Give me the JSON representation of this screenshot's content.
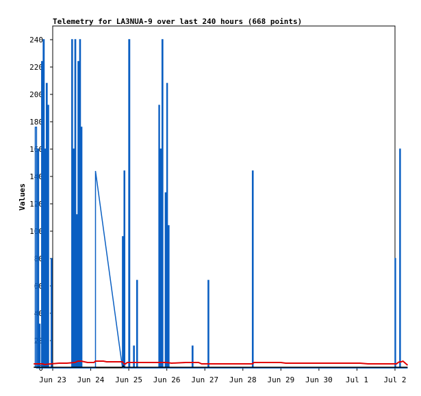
{
  "chart_data": {
    "type": "line",
    "title": "Telemetry for LA3NUA-9 over last 240 hours (668 points)",
    "xlabel": "",
    "ylabel": "Values",
    "x_ticks": [
      "Jun 23",
      "Jun 24",
      "Jun 25",
      "Jun 26",
      "Jun 27",
      "Jun 28",
      "Jun 29",
      "Jun 30",
      "Jul 1",
      "Jul 2"
    ],
    "xlim": [
      "Jun 23 00:00",
      "Jul 2 00:00"
    ],
    "ylim": [
      0,
      250
    ],
    "y_ticks": [
      0,
      20,
      40,
      60,
      80,
      100,
      120,
      140,
      160,
      180,
      200,
      220,
      240
    ],
    "grid": false,
    "series": [
      {
        "color": "#0a5fc2",
        "points": [
          [
            5.0,
            0
          ],
          [
            5.0,
            176
          ],
          [
            5.8,
            176
          ],
          [
            5.8,
            0
          ],
          [
            6.5,
            0
          ],
          [
            6.5,
            160
          ],
          [
            7.1,
            160
          ],
          [
            7.1,
            0
          ],
          [
            7.6,
            0
          ],
          [
            7.6,
            32
          ],
          [
            8.0,
            32
          ],
          [
            8.0,
            0
          ],
          [
            9.0,
            0
          ],
          [
            9.0,
            224
          ],
          [
            9.5,
            224
          ],
          [
            9.5,
            0
          ],
          [
            10.0,
            0
          ],
          [
            10.0,
            240
          ],
          [
            10.6,
            240
          ],
          [
            10.6,
            0
          ],
          [
            11.0,
            0
          ],
          [
            11.0,
            160
          ],
          [
            11.4,
            160
          ],
          [
            11.4,
            0
          ],
          [
            12.0,
            0
          ],
          [
            12.0,
            208
          ],
          [
            12.5,
            208
          ],
          [
            12.5,
            0
          ],
          [
            13.0,
            0
          ],
          [
            13.0,
            192
          ],
          [
            13.4,
            192
          ],
          [
            13.4,
            0
          ],
          [
            15.0,
            0
          ],
          [
            15.0,
            80
          ],
          [
            15.5,
            80
          ],
          [
            15.5,
            0
          ],
          [
            28.0,
            0
          ],
          [
            28.0,
            240
          ],
          [
            28.5,
            240
          ],
          [
            28.5,
            0
          ],
          [
            29.0,
            0
          ],
          [
            29.0,
            160
          ],
          [
            29.5,
            160
          ],
          [
            29.5,
            0
          ],
          [
            30.0,
            0
          ],
          [
            30.0,
            240
          ],
          [
            30.5,
            240
          ],
          [
            30.5,
            0
          ],
          [
            31.0,
            0
          ],
          [
            31.0,
            112
          ],
          [
            31.5,
            112
          ],
          [
            31.5,
            0
          ],
          [
            32.0,
            0
          ],
          [
            32.0,
            224
          ],
          [
            32.4,
            224
          ],
          [
            32.4,
            0
          ],
          [
            33.0,
            0
          ],
          [
            33.0,
            240
          ],
          [
            33.5,
            240
          ],
          [
            33.5,
            0
          ],
          [
            34.0,
            0
          ],
          [
            34.0,
            176
          ],
          [
            34.4,
            176
          ],
          [
            34.4,
            0
          ],
          [
            43.0,
            0
          ],
          [
            43.0,
            144
          ],
          [
            60.0,
            0
          ],
          [
            60.0,
            96
          ],
          [
            60.5,
            96
          ],
          [
            60.5,
            0
          ],
          [
            61.0,
            0
          ],
          [
            61.0,
            144
          ],
          [
            61.5,
            144
          ],
          [
            61.5,
            0
          ],
          [
            64.0,
            0
          ],
          [
            64.0,
            240
          ],
          [
            64.6,
            240
          ],
          [
            64.6,
            0
          ],
          [
            67.0,
            0
          ],
          [
            67.0,
            16
          ],
          [
            67.5,
            16
          ],
          [
            67.5,
            0
          ],
          [
            69.0,
            0
          ],
          [
            69.0,
            64
          ],
          [
            69.5,
            64
          ],
          [
            69.5,
            0
          ],
          [
            83.0,
            0
          ],
          [
            83.0,
            192
          ],
          [
            83.4,
            192
          ],
          [
            83.4,
            0
          ],
          [
            84.0,
            0
          ],
          [
            84.0,
            160
          ],
          [
            84.4,
            160
          ],
          [
            84.4,
            0
          ],
          [
            85.0,
            0
          ],
          [
            85.0,
            240
          ],
          [
            85.5,
            240
          ],
          [
            85.5,
            0
          ],
          [
            87.0,
            0
          ],
          [
            87.0,
            128
          ],
          [
            87.4,
            128
          ],
          [
            87.4,
            0
          ],
          [
            88.0,
            0
          ],
          [
            88.0,
            208
          ],
          [
            88.4,
            208
          ],
          [
            88.4,
            0
          ],
          [
            89.0,
            0
          ],
          [
            89.0,
            104
          ],
          [
            89.4,
            104
          ],
          [
            89.4,
            0
          ],
          [
            104.0,
            0
          ],
          [
            104.0,
            16
          ],
          [
            104.5,
            16
          ],
          [
            104.5,
            0
          ],
          [
            114.0,
            0
          ],
          [
            114.0,
            64
          ],
          [
            114.5,
            64
          ],
          [
            114.5,
            0
          ],
          [
            142.0,
            0
          ],
          [
            142.0,
            144
          ],
          [
            142.5,
            144
          ],
          [
            142.5,
            0
          ],
          [
            232.0,
            0
          ],
          [
            232.0,
            80
          ],
          [
            232.4,
            80
          ],
          [
            232.4,
            0
          ],
          [
            235.0,
            0
          ],
          [
            235.0,
            160
          ],
          [
            235.4,
            160
          ],
          [
            235.4,
            0
          ],
          [
            240.0,
            0
          ]
        ]
      },
      {
        "color": "#e00000",
        "points": [
          [
            4.0,
            3
          ],
          [
            10.0,
            3
          ],
          [
            10.5,
            2.5
          ],
          [
            15.0,
            3
          ],
          [
            20.0,
            3.5
          ],
          [
            25.0,
            3.5
          ],
          [
            30.0,
            4
          ],
          [
            32.0,
            5
          ],
          [
            34.0,
            5
          ],
          [
            38.0,
            4
          ],
          [
            42.0,
            4
          ],
          [
            43.0,
            5
          ],
          [
            48.0,
            5
          ],
          [
            50.0,
            4.5
          ],
          [
            56.0,
            4.5
          ],
          [
            60.0,
            4.5
          ],
          [
            61.0,
            3
          ],
          [
            62.0,
            3
          ],
          [
            63.0,
            4
          ],
          [
            70.0,
            4
          ],
          [
            80.0,
            4
          ],
          [
            88.0,
            4
          ],
          [
            91.0,
            3.5
          ],
          [
            100.0,
            4
          ],
          [
            108.0,
            4
          ],
          [
            110.0,
            3
          ],
          [
            120.0,
            3
          ],
          [
            130.0,
            3
          ],
          [
            142.0,
            3
          ],
          [
            143.0,
            4
          ],
          [
            150.0,
            4
          ],
          [
            160.0,
            4
          ],
          [
            163.0,
            3.5
          ],
          [
            175.0,
            3.5
          ],
          [
            190.0,
            3.5
          ],
          [
            200.0,
            3.5
          ],
          [
            210.0,
            3.5
          ],
          [
            215.0,
            3
          ],
          [
            225.0,
            3
          ],
          [
            230.0,
            3
          ],
          [
            233.0,
            3
          ],
          [
            234.0,
            4
          ],
          [
            235.0,
            4.5
          ],
          [
            236.0,
            4.5
          ],
          [
            237.0,
            5
          ],
          [
            238.0,
            4
          ],
          [
            239.0,
            3
          ],
          [
            240.0,
            2
          ]
        ]
      },
      {
        "color": "#000000",
        "points": [
          [
            4.0,
            0.5
          ],
          [
            60.0,
            0.5
          ],
          [
            60.5,
            1.5
          ],
          [
            61.0,
            0.5
          ],
          [
            240.0,
            0.5
          ]
        ]
      }
    ]
  }
}
